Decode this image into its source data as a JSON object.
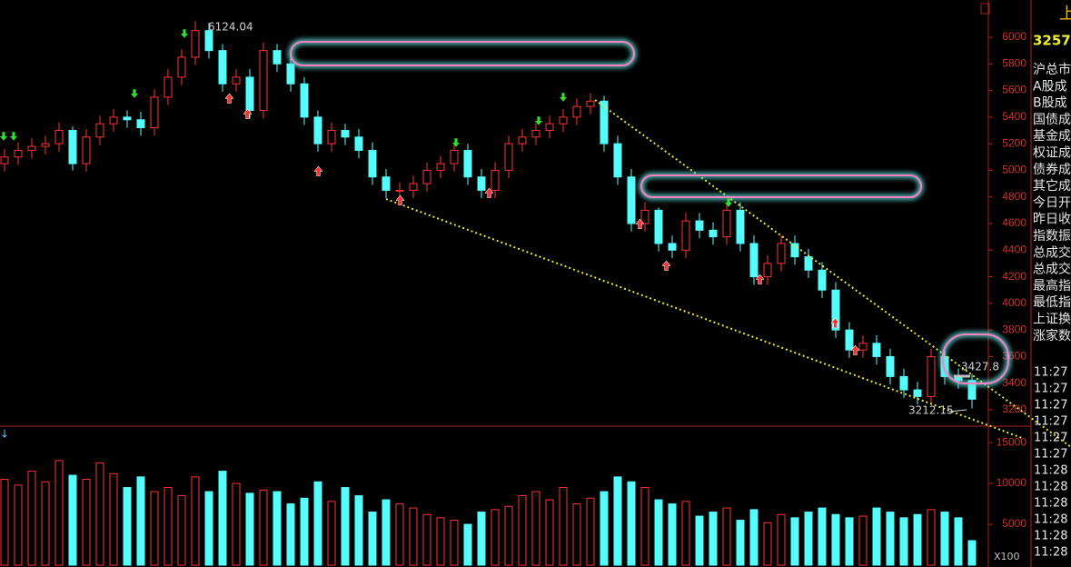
{
  "chart_data": {
    "type": "candlestick",
    "open": [
      5050,
      5100,
      5150,
      5180,
      5200,
      5300,
      5050,
      5250,
      5350,
      5400,
      5380,
      5320,
      5550,
      5700,
      5850,
      6050,
      5900,
      5650,
      5700,
      5450,
      5900,
      5800,
      5650,
      5400,
      5200,
      5300,
      5250,
      5150,
      4950,
      4850,
      4850,
      4900,
      5000,
      5050,
      5150,
      4950,
      4850,
      5000,
      5200,
      5250,
      5300,
      5350,
      5400,
      5480,
      5520,
      5200,
      4950,
      4600,
      4700,
      4450,
      4400,
      4620,
      4550,
      4500,
      4700,
      4450,
      4200,
      4300,
      4450,
      4350,
      4250,
      4100,
      3800,
      3650,
      3700,
      3600,
      3450,
      3350,
      3300,
      3600,
      3450,
      3420
    ],
    "high": [
      5160,
      5210,
      5240,
      5260,
      5360,
      5330,
      5310,
      5410,
      5460,
      5450,
      5440,
      5610,
      5760,
      5910,
      6124.04,
      6110,
      5950,
      5760,
      5760,
      5960,
      5950,
      5860,
      5700,
      5450,
      5360,
      5350,
      5310,
      5210,
      5010,
      4910,
      4960,
      5060,
      5110,
      5210,
      5200,
      5010,
      5060,
      5260,
      5310,
      5360,
      5410,
      5460,
      5540,
      5580,
      5560,
      5260,
      5010,
      4760,
      4720,
      4510,
      4680,
      4680,
      4610,
      4760,
      4760,
      4510,
      4360,
      4510,
      4510,
      4410,
      4310,
      4160,
      3860,
      3760,
      3760,
      3660,
      3510,
      3410,
      3660,
      3660,
      3510,
      3470
    ],
    "low": [
      4990,
      5040,
      5090,
      5120,
      5140,
      5000,
      4990,
      5190,
      5290,
      5320,
      5260,
      5260,
      5490,
      5640,
      5790,
      5840,
      5590,
      5590,
      5390,
      5390,
      5740,
      5590,
      5340,
      5140,
      5140,
      5190,
      5090,
      4890,
      4790,
      4790,
      4790,
      4840,
      4940,
      4990,
      4890,
      4790,
      4790,
      4940,
      5140,
      5190,
      5240,
      5290,
      5340,
      5420,
      5140,
      4890,
      4540,
      4540,
      4390,
      4340,
      4340,
      4490,
      4440,
      4440,
      4390,
      4140,
      4140,
      4240,
      4290,
      4190,
      4040,
      3740,
      3590,
      3590,
      3540,
      3390,
      3290,
      3240,
      3240,
      3390,
      3360,
      3212.15
    ],
    "close": [
      5100,
      5150,
      5180,
      5200,
      5300,
      5050,
      5250,
      5350,
      5400,
      5380,
      5320,
      5550,
      5700,
      5850,
      6050,
      5900,
      5650,
      5700,
      5450,
      5900,
      5800,
      5650,
      5400,
      5200,
      5300,
      5250,
      5150,
      4950,
      4850,
      4850,
      4900,
      5000,
      5050,
      5150,
      4950,
      4850,
      5000,
      5200,
      5250,
      5300,
      5350,
      5400,
      5480,
      5520,
      5200,
      4950,
      4600,
      4700,
      4450,
      4400,
      4620,
      4550,
      4500,
      4700,
      4450,
      4200,
      4300,
      4450,
      4350,
      4250,
      4100,
      3800,
      3650,
      3700,
      3600,
      3450,
      3350,
      3300,
      3600,
      3450,
      3420,
      3280
    ],
    "volume": [
      10500,
      9800,
      11500,
      10200,
      12800,
      11000,
      10500,
      12500,
      11200,
      9500,
      10800,
      9000,
      9500,
      8500,
      10800,
      9000,
      11500,
      10000,
      8800,
      9200,
      9000,
      7500,
      8200,
      10200,
      7800,
      9500,
      8500,
      6500,
      8000,
      7500,
      7000,
      6200,
      5800,
      5500,
      5000,
      6500,
      6800,
      7200,
      8500,
      9000,
      8000,
      9500,
      7500,
      8200,
      9000,
      10800,
      10200,
      9500,
      8000,
      7500,
      7800,
      6000,
      6500,
      7000,
      5500,
      6800,
      5200,
      6200,
      5800,
      6500,
      7000,
      6200,
      5800,
      6000,
      7000,
      6500,
      5800,
      6200,
      6800,
      6500,
      5800,
      3000
    ],
    "up_color": "#ff3232",
    "down_color": "#54fcfc",
    "ylim": [
      3084,
      6280
    ],
    "yticks": [
      3200,
      3400,
      3600,
      3800,
      4000,
      4200,
      4400,
      4600,
      4800,
      5000,
      5200,
      5400,
      5600,
      5800,
      6000
    ],
    "volume_ylim": [
      0,
      16900
    ],
    "volume_yticks": [
      5000,
      10000,
      15000
    ],
    "volume_unit": "X100",
    "annotations": [
      {
        "label": "6124.04"
      },
      {
        "label": "3427.8"
      },
      {
        "label": "3212.15"
      }
    ]
  },
  "side_panel": {
    "index_name": "上",
    "price": "3257.",
    "labels": [
      "沪总市",
      "A股成",
      "B股成",
      "国债成",
      "基金成",
      "权证成",
      "债券成",
      "其它成",
      "今日开",
      "昨日收",
      "指数振",
      "总成交",
      "总成交",
      "最高指",
      "最低指",
      "上证换",
      "涨家数"
    ],
    "times": [
      "11:27",
      "11:27",
      "11:27",
      "11:27",
      "11:27",
      "11:27",
      "11:28",
      "11:28",
      "11:28",
      "11:28",
      "11:28",
      "11:28"
    ]
  }
}
